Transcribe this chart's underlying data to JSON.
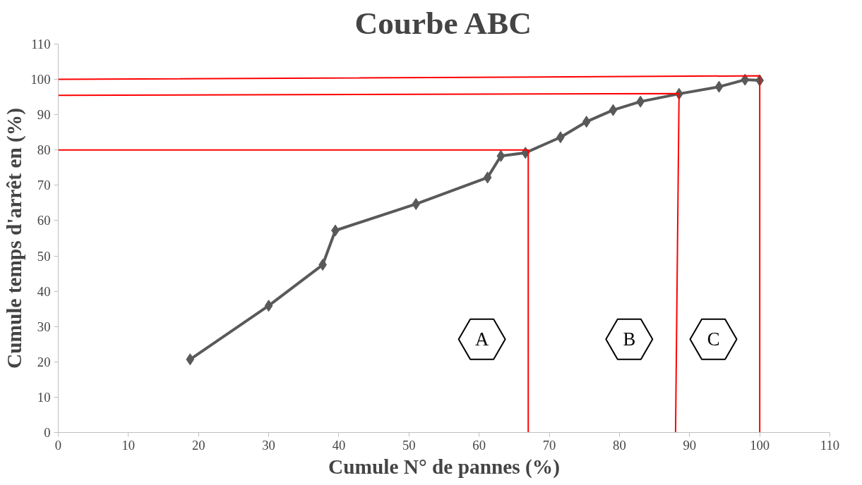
{
  "chart_data": {
    "type": "line",
    "title": "Courbe ABC",
    "xlabel": "Cumule N° de pannes (%)",
    "ylabel": "Cumule temps d'arrêt en (%)",
    "xlim": [
      0,
      110
    ],
    "ylim": [
      0,
      110
    ],
    "xticks": [
      0,
      10,
      20,
      30,
      40,
      50,
      60,
      70,
      80,
      90,
      100,
      110
    ],
    "yticks": [
      0,
      10,
      20,
      30,
      40,
      50,
      60,
      70,
      80,
      90,
      100,
      110
    ],
    "grid": false,
    "series": [
      {
        "color": "#595959",
        "marker": "diamond",
        "x": [
          18.8,
          30.0,
          37.7,
          39.5,
          51.0,
          61.2,
          63.1,
          66.6,
          71.6,
          75.3,
          79.1,
          83.0,
          88.5,
          94.2,
          97.9,
          100
        ],
        "values": [
          20.7,
          35.9,
          47.5,
          57.2,
          64.7,
          72.2,
          78.3,
          79.2,
          83.6,
          88.0,
          91.3,
          93.7,
          95.9,
          97.9,
          99.9,
          99.7
        ]
      },
      {
        "color": "#ff0000",
        "marker": "none",
        "x": [
          0,
          67,
          67
        ],
        "values": [
          80,
          80,
          0
        ]
      },
      {
        "color": "#ff0000",
        "marker": "none",
        "x": [
          0,
          88.5,
          88
        ],
        "values": [
          95.5,
          96,
          0
        ]
      },
      {
        "color": "#ff0000",
        "marker": "none",
        "x": [
          0,
          100,
          100
        ],
        "values": [
          100,
          101,
          0
        ]
      }
    ],
    "annotations": [
      "A",
      "B",
      "C"
    ]
  }
}
